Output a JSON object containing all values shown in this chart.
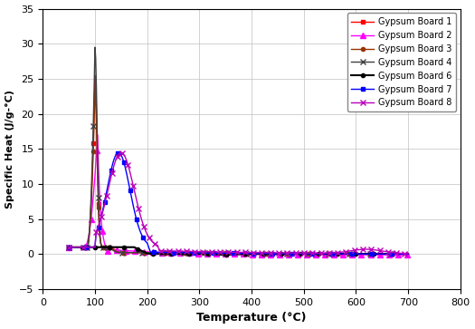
{
  "xlabel": "Temperature (°C)",
  "ylabel": "Specific Heat (J/g-°C)",
  "xlim": [
    0,
    800
  ],
  "ylim": [
    -5,
    35
  ],
  "xticks": [
    0,
    100,
    200,
    300,
    400,
    500,
    600,
    700,
    800
  ],
  "yticks": [
    -5,
    0,
    5,
    10,
    15,
    20,
    25,
    30,
    35
  ],
  "background_color": "#FFFFFF",
  "grid_color": "#C0C0C0",
  "series": [
    {
      "label": "Gypsum Board 1",
      "color": "#FF0000",
      "marker": "s",
      "markersize": 3,
      "linewidth": 1.0
    },
    {
      "label": "Gypsum Board 2",
      "color": "#FF00FF",
      "marker": "^",
      "markersize": 4,
      "linewidth": 1.0
    },
    {
      "label": "Gypsum Board 3",
      "color": "#993300",
      "marker": "o",
      "markersize": 3,
      "linewidth": 1.0
    },
    {
      "label": "Gypsum Board 4",
      "color": "#404040",
      "marker": "x",
      "markersize": 5,
      "linewidth": 1.0
    },
    {
      "label": "Gypsum Board 6",
      "color": "#000000",
      "marker": "o",
      "markersize": 3,
      "linewidth": 1.5
    },
    {
      "label": "Gypsum Board 7",
      "color": "#0000FF",
      "marker": "s",
      "markersize": 3,
      "linewidth": 1.0
    },
    {
      "label": "Gypsum Board 8",
      "color": "#BB00BB",
      "marker": "x",
      "markersize": 4,
      "linewidth": 1.0
    }
  ]
}
